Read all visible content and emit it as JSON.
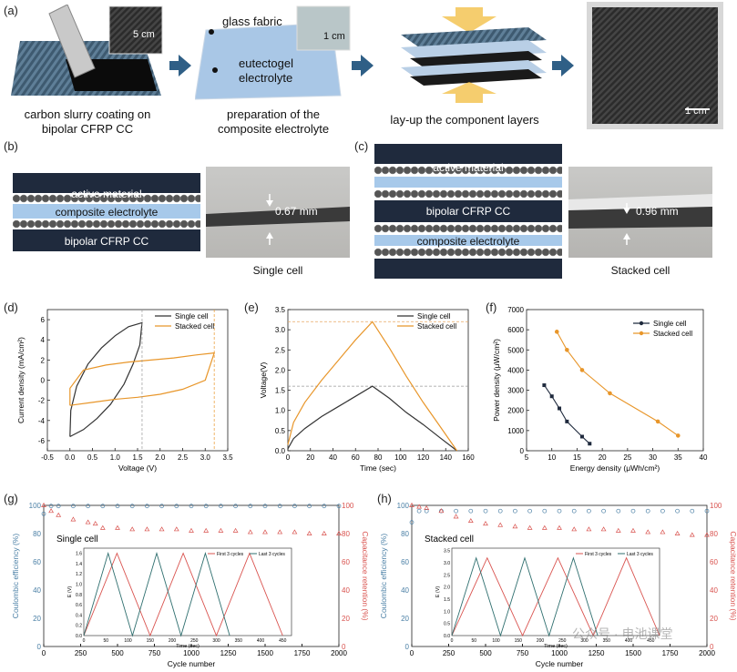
{
  "panel_a": {
    "letter": "(a)",
    "steps": [
      {
        "label": "carbon slurry coating on\nbipolar CFRP CC",
        "scale": "5 cm"
      },
      {
        "label": "preparation of the\ncomposite electrolyte",
        "scale": "1 cm",
        "callout_1": "glass fabric",
        "callout_2": "eutectogel\nelectrolyte"
      },
      {
        "label": "lay-up the component layers"
      },
      {
        "label": "",
        "scale": "1 cm"
      }
    ]
  },
  "panel_b": {
    "letter": "(b)",
    "labels": [
      "active material",
      "composite electrolyte",
      "bipolar CFRP CC"
    ],
    "thickness": "0.67 mm",
    "photo_caption": "Single cell"
  },
  "panel_c": {
    "letter": "(c)",
    "labels": [
      "active material",
      "bipolar CFRP CC",
      "composite electrolyte"
    ],
    "thickness": "0.96 mm",
    "photo_caption": "Stacked cell"
  },
  "colors": {
    "single": "#333333",
    "stacked": "#e8962a",
    "ce_blue": "#4a7fa5",
    "cr_red": "#d9534f",
    "arrow": "#2f5f86",
    "navy": "#1f2a3d"
  },
  "chart_data": [
    {
      "id": "d",
      "letter": "(d)",
      "type": "line",
      "xlabel": "Voltage (V)",
      "ylabel": "Current density (mA/cm²)",
      "xlim": [
        -0.5,
        3.5
      ],
      "ylim": [
        -7,
        7
      ],
      "xticks": [
        "-0.5",
        "0.0",
        "0.5",
        "1.0",
        "1.5",
        "2.0",
        "2.5",
        "3.0",
        "3.5"
      ],
      "yticks": [
        "6",
        "4",
        "2",
        "0",
        "-2",
        "-4",
        "-6"
      ],
      "series": [
        {
          "name": "Single cell",
          "points": [
            [
              0.0,
              -5.6
            ],
            [
              0.3,
              -4.9
            ],
            [
              0.6,
              -3.8
            ],
            [
              0.9,
              -2.4
            ],
            [
              1.2,
              -0.4
            ],
            [
              1.4,
              1.6
            ],
            [
              1.55,
              3.5
            ],
            [
              1.6,
              5.7
            ],
            [
              1.3,
              5.3
            ],
            [
              1.0,
              4.4
            ],
            [
              0.7,
              3.2
            ],
            [
              0.4,
              1.6
            ],
            [
              0.15,
              -0.6
            ],
            [
              0.02,
              -3.0
            ],
            [
              0.0,
              -5.6
            ]
          ]
        },
        {
          "name": "Stacked cell",
          "points": [
            [
              0.0,
              -2.5
            ],
            [
              0.5,
              -2.2
            ],
            [
              1.0,
              -1.9
            ],
            [
              1.5,
              -1.7
            ],
            [
              2.0,
              -1.4
            ],
            [
              2.5,
              -0.9
            ],
            [
              3.0,
              0.0
            ],
            [
              3.2,
              2.7
            ],
            [
              2.8,
              2.5
            ],
            [
              2.3,
              2.2
            ],
            [
              1.8,
              2.0
            ],
            [
              1.3,
              1.8
            ],
            [
              0.8,
              1.5
            ],
            [
              0.3,
              1.0
            ],
            [
              0.0,
              -0.8
            ],
            [
              0.0,
              -2.5
            ]
          ]
        }
      ]
    },
    {
      "id": "e",
      "letter": "(e)",
      "type": "line",
      "xlabel": "Time (sec)",
      "ylabel": "Voltage(V)",
      "xlim": [
        0,
        160
      ],
      "ylim": [
        0,
        3.5
      ],
      "xticks": [
        "0",
        "20",
        "40",
        "60",
        "80",
        "100",
        "120",
        "140",
        "160"
      ],
      "yticks": [
        "3.5",
        "3.0",
        "2.5",
        "2.0",
        "1.5",
        "1.0",
        "0.5",
        "0.0"
      ],
      "series": [
        {
          "name": "Single cell",
          "points": [
            [
              0,
              0.05
            ],
            [
              5,
              0.3
            ],
            [
              15,
              0.55
            ],
            [
              30,
              0.85
            ],
            [
              45,
              1.1
            ],
            [
              60,
              1.35
            ],
            [
              75,
              1.6
            ],
            [
              90,
              1.3
            ],
            [
              105,
              0.95
            ],
            [
              120,
              0.65
            ],
            [
              135,
              0.32
            ],
            [
              150,
              0.0
            ]
          ]
        },
        {
          "name": "Stacked cell",
          "points": [
            [
              0,
              0.15
            ],
            [
              5,
              0.7
            ],
            [
              15,
              1.2
            ],
            [
              30,
              1.75
            ],
            [
              45,
              2.25
            ],
            [
              60,
              2.75
            ],
            [
              75,
              3.2
            ],
            [
              90,
              2.55
            ],
            [
              105,
              1.85
            ],
            [
              120,
              1.2
            ],
            [
              135,
              0.6
            ],
            [
              150,
              0.0
            ]
          ]
        }
      ]
    },
    {
      "id": "f",
      "letter": "(f)",
      "type": "line",
      "xlabel": "Energy density (μWh/cm²)",
      "ylabel": "Power density (μW/cm²)",
      "xlim": [
        5,
        40
      ],
      "ylim": [
        0,
        7000
      ],
      "xticks": [
        "5",
        "10",
        "15",
        "20",
        "25",
        "30",
        "35",
        "40"
      ],
      "yticks": [
        "7000",
        "6000",
        "5000",
        "4000",
        "3000",
        "2000",
        "1000",
        "0"
      ],
      "series": [
        {
          "name": "Single cell",
          "points": [
            [
              8.5,
              3250
            ],
            [
              10,
              2700
            ],
            [
              11.5,
              2100
            ],
            [
              13,
              1450
            ],
            [
              16,
              700
            ],
            [
              17.5,
              350
            ]
          ]
        },
        {
          "name": "Stacked cell",
          "points": [
            [
              11,
              5900
            ],
            [
              13,
              5000
            ],
            [
              16,
              4000
            ],
            [
              21.5,
              2850
            ],
            [
              31,
              1450
            ],
            [
              35,
              750
            ]
          ]
        }
      ]
    },
    {
      "id": "g",
      "letter": "(g)",
      "type": "scatter",
      "title": "Single cell",
      "xlabel": "Cycle number",
      "ylabel": "Coulombic efficiency (%)",
      "y2label": "Capacitance retention (%)",
      "xlim": [
        0,
        2000
      ],
      "ylim": [
        0,
        100
      ],
      "xticks": [
        "0",
        "250",
        "500",
        "750",
        "1000",
        "1250",
        "1500",
        "1750",
        "2000"
      ],
      "yticks": [
        "100",
        "80",
        "60",
        "40",
        "20",
        "0"
      ],
      "series": [
        {
          "name": "Coulombic efficiency",
          "x": [
            0,
            50,
            100,
            200,
            300,
            400,
            500,
            600,
            700,
            800,
            900,
            1000,
            1100,
            1200,
            1300,
            1400,
            1500,
            1600,
            1700,
            1800,
            1900,
            2000
          ],
          "values": [
            94,
            99.5,
            99.5,
            99.5,
            99.5,
            99.5,
            99.5,
            99.5,
            99.5,
            99.5,
            99.5,
            99.5,
            99.5,
            99.5,
            99.5,
            99.5,
            99.5,
            99.5,
            99.5,
            99.5,
            99.5,
            99.5
          ]
        },
        {
          "name": "Capacitance retention",
          "x": [
            0,
            50,
            100,
            200,
            300,
            350,
            400,
            500,
            600,
            700,
            800,
            900,
            1000,
            1100,
            1200,
            1300,
            1400,
            1500,
            1600,
            1700,
            1800,
            1900,
            2000
          ],
          "values": [
            100,
            96,
            93,
            90,
            88,
            87,
            84,
            84,
            83,
            83,
            83,
            83,
            82,
            82,
            82,
            82,
            81,
            81,
            81,
            81,
            80,
            80,
            80
          ]
        }
      ],
      "inset": {
        "xlabel": "Time (sec)",
        "ylabel": "E (V)",
        "xticks": [
          "0",
          "50",
          "100",
          "150",
          "200",
          "250",
          "300",
          "350",
          "400",
          "450"
        ],
        "yticks": [
          "1.6",
          "1.4",
          "1.2",
          "1.0",
          "0.8",
          "0.6",
          "0.4",
          "0.2",
          "0.0"
        ],
        "xlim": [
          0,
          470
        ],
        "ylim": [
          0,
          1.7
        ],
        "series": [
          {
            "name": "First 3 cycles",
            "peaks": [
              [
                0,
                0
              ],
              [
                75,
                1.6
              ],
              [
                150,
                0
              ],
              [
                225,
                1.6
              ],
              [
                300,
                0
              ],
              [
                375,
                1.6
              ],
              [
                450,
                0
              ]
            ]
          },
          {
            "name": "Last 3 cycles",
            "peaks": [
              [
                0,
                0
              ],
              [
                55,
                1.6
              ],
              [
                110,
                0
              ],
              [
                165,
                1.6
              ],
              [
                220,
                0
              ],
              [
                275,
                1.6
              ],
              [
                330,
                0
              ]
            ]
          }
        ]
      }
    },
    {
      "id": "h",
      "letter": "(h)",
      "type": "scatter",
      "title": "Stacked cell",
      "xlabel": "Cycle number",
      "ylabel": "Coulombic efficiency (%)",
      "y2label": "Capacitance retention (%)",
      "xlim": [
        0,
        2000
      ],
      "ylim": [
        0,
        100
      ],
      "xticks": [
        "0",
        "250",
        "500",
        "750",
        "1000",
        "1250",
        "1500",
        "1750",
        "2000"
      ],
      "yticks": [
        "100",
        "80",
        "60",
        "40",
        "20",
        "0"
      ],
      "series": [
        {
          "name": "Coulombic efficiency",
          "x": [
            0,
            50,
            100,
            200,
            300,
            400,
            500,
            600,
            700,
            800,
            900,
            1000,
            1100,
            1200,
            1300,
            1400,
            1500,
            1600,
            1700,
            1800,
            1900,
            2000
          ],
          "values": [
            88,
            96,
            96,
            96,
            96,
            96,
            96,
            96,
            96,
            96,
            96,
            96,
            96,
            96,
            96,
            96,
            96,
            96,
            96,
            96,
            96,
            96
          ]
        },
        {
          "name": "Capacitance retention",
          "x": [
            0,
            50,
            100,
            200,
            300,
            400,
            500,
            600,
            700,
            800,
            900,
            1000,
            1100,
            1200,
            1300,
            1400,
            1500,
            1600,
            1700,
            1800,
            1900,
            2000
          ],
          "values": [
            100,
            99,
            98,
            96,
            92,
            89,
            87,
            86,
            85,
            84,
            84,
            84,
            83,
            83,
            83,
            82,
            82,
            81,
            81,
            80,
            79,
            79
          ]
        }
      ],
      "inset": {
        "xlabel": "Time (sec)",
        "ylabel": "E (V)",
        "xticks": [
          "0",
          "50",
          "100",
          "150",
          "200",
          "250",
          "300",
          "350",
          "400",
          "450"
        ],
        "yticks": [
          "3.5",
          "3.0",
          "2.5",
          "2.0",
          "1.5",
          "1.0",
          "0.5",
          "0.0"
        ],
        "xlim": [
          0,
          470
        ],
        "ylim": [
          0,
          3.6
        ],
        "series": [
          {
            "name": "First 3 cycles",
            "peaks": [
              [
                0,
                0
              ],
              [
                80,
                3.2
              ],
              [
                160,
                0
              ],
              [
                240,
                3.2
              ],
              [
                320,
                0
              ],
              [
                395,
                3.2
              ],
              [
                470,
                0
              ]
            ]
          },
          {
            "name": "Last 3 cycles",
            "peaks": [
              [
                0,
                0
              ],
              [
                55,
                3.2
              ],
              [
                110,
                0
              ],
              [
                165,
                3.2
              ],
              [
                220,
                0
              ],
              [
                275,
                3.2
              ],
              [
                330,
                0
              ]
            ]
          }
        ]
      }
    }
  ],
  "watermark": "公众号 · 电池课堂"
}
